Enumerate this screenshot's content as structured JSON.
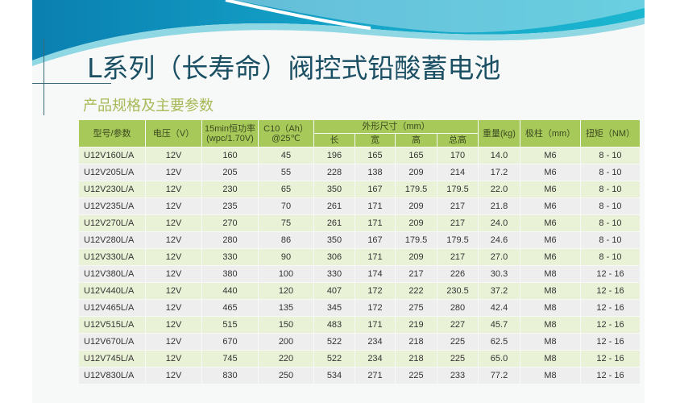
{
  "title": "L系列（长寿命）阀控式铅酸蓄电池",
  "subtitle": "产品规格及主要参数",
  "colors": {
    "header_bg": "#a6c95a",
    "row_green": "#e9f2d6",
    "row_gray": "#eeeeef",
    "title": "#1b4f63",
    "subtitle": "#a6b956"
  },
  "table": {
    "headers": {
      "model": "型号/参数",
      "voltage": "电压（V）",
      "power": "15min恒功率\n(wpc/1.70V)",
      "power_line1": "15min恒功率",
      "power_line2": "(wpc/1.70V)",
      "capacity_line1": "C10（Ah）",
      "capacity_line2": "@25℃",
      "dimensions": "外形尺寸（mm）",
      "length": "长",
      "width": "宽",
      "height": "高",
      "total_height": "总高",
      "weight": "重量(kg)",
      "terminal": "极柱（mm）",
      "torque": "扭矩（NM）"
    },
    "rows": [
      [
        "U12V160L/A",
        "12V",
        "160",
        "45",
        "196",
        "165",
        "165",
        "170",
        "14.0",
        "M6",
        "8 - 10"
      ],
      [
        "U12V205L/A",
        "12V",
        "205",
        "55",
        "228",
        "138",
        "209",
        "214",
        "17.2",
        "M6",
        "8 - 10"
      ],
      [
        "U12V230L/A",
        "12V",
        "230",
        "65",
        "350",
        "167",
        "179.5",
        "179.5",
        "22.0",
        "M6",
        "8 - 10"
      ],
      [
        "U12V235L/A",
        "12V",
        "235",
        "70",
        "261",
        "171",
        "209",
        "217",
        "21.8",
        "M6",
        "8 - 10"
      ],
      [
        "U12V270L/A",
        "12V",
        "270",
        "75",
        "261",
        "171",
        "209",
        "217",
        "24.0",
        "M6",
        "8 - 10"
      ],
      [
        "U12V280L/A",
        "12V",
        "280",
        "86",
        "350",
        "167",
        "179.5",
        "179.5",
        "24.6",
        "M6",
        "8 - 10"
      ],
      [
        "U12V330L/A",
        "12V",
        "330",
        "90",
        "306",
        "171",
        "209",
        "217",
        "27.0",
        "M6",
        "8 - 10"
      ],
      [
        "U12V380L/A",
        "12V",
        "380",
        "100",
        "330",
        "174",
        "217",
        "226",
        "30.3",
        "M8",
        "12 - 16"
      ],
      [
        "U12V440L/A",
        "12V",
        "440",
        "120",
        "407",
        "172",
        "222",
        "230.5",
        "37.2",
        "M8",
        "12 - 16"
      ],
      [
        "U12V465L/A",
        "12V",
        "465",
        "135",
        "345",
        "172",
        "275",
        "280",
        "42.4",
        "M8",
        "12 - 16"
      ],
      [
        "U12V515L/A",
        "12V",
        "515",
        "150",
        "483",
        "171",
        "219",
        "227",
        "45.7",
        "M8",
        "12 - 16"
      ],
      [
        "U12V670L/A",
        "12V",
        "670",
        "200",
        "522",
        "234",
        "218",
        "225",
        "62.5",
        "M8",
        "12 - 16"
      ],
      [
        "U12V745L/A",
        "12V",
        "745",
        "220",
        "522",
        "234",
        "218",
        "225",
        "65.0",
        "M8",
        "12 - 16"
      ],
      [
        "U12V830L/A",
        "12V",
        "830",
        "250",
        "534",
        "271",
        "225",
        "233",
        "77.2",
        "M8",
        "12 - 16"
      ]
    ]
  }
}
